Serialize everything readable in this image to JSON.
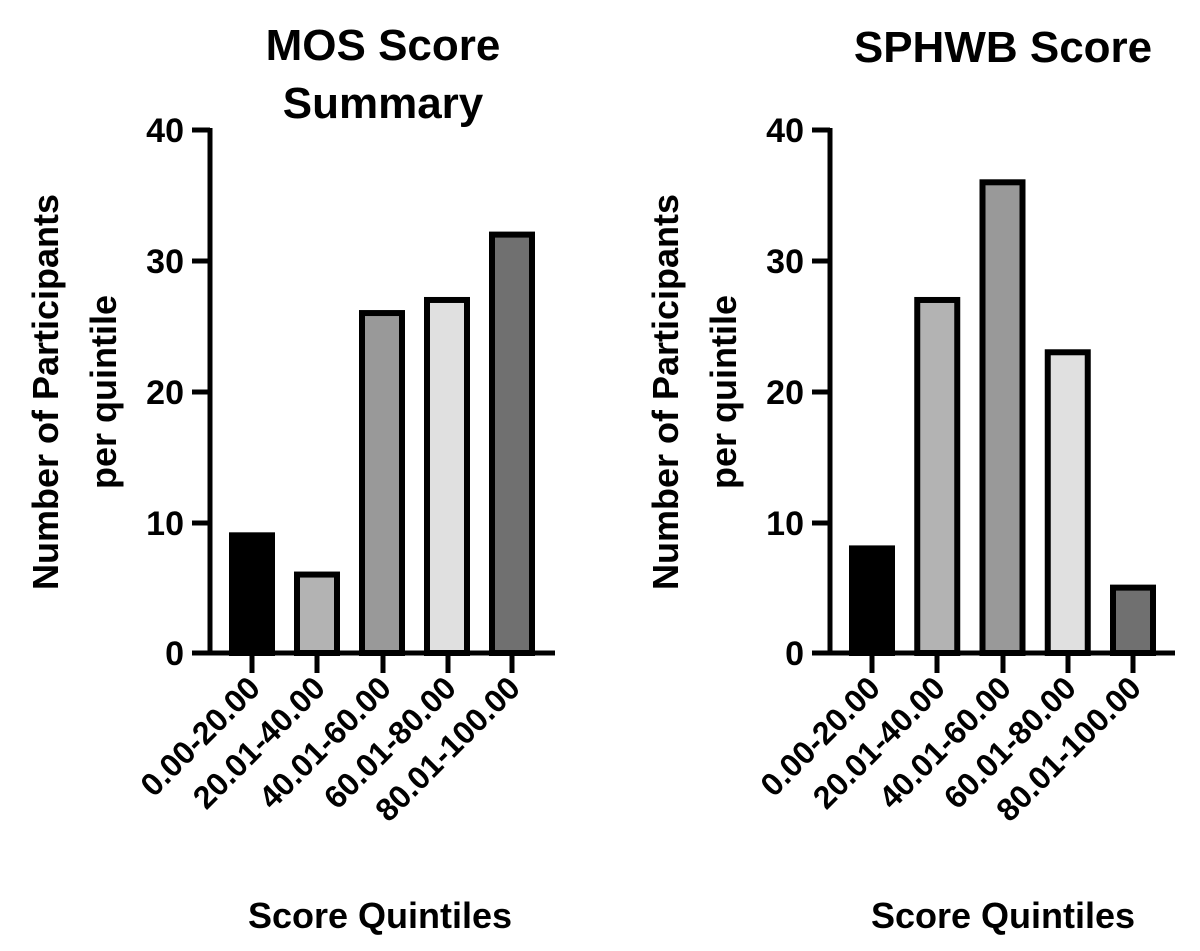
{
  "chart_data": [
    {
      "type": "bar",
      "title_lines": [
        "MOS Score",
        "Summary"
      ],
      "xlabel": "Score Quintiles",
      "ylabel_lines": [
        "Number of Participants",
        "per quintile"
      ],
      "categories": [
        "0.00-20.00",
        "20.01-40.00",
        "40.01-60.00",
        "60.01-80.00",
        "80.01-100.00"
      ],
      "values": [
        9,
        6,
        26,
        27,
        32
      ],
      "bar_colors": [
        "#000000",
        "#b3b3b3",
        "#999999",
        "#e0e0e0",
        "#707070"
      ],
      "yticks": [
        "0",
        "10",
        "20",
        "30",
        "40"
      ],
      "ylim": [
        0,
        40
      ],
      "grid": false,
      "legend": "none"
    },
    {
      "type": "bar",
      "title_lines": [
        "SPHWB Score"
      ],
      "xlabel": "Score Quintiles",
      "ylabel_lines": [
        "Number of Participants",
        "per quintile"
      ],
      "categories": [
        "0.00-20.00",
        "20.01-40.00",
        "40.01-60.00",
        "60.01-80.00",
        "80.01-100.00"
      ],
      "values": [
        8,
        27,
        36,
        23,
        5
      ],
      "bar_colors": [
        "#000000",
        "#b3b3b3",
        "#999999",
        "#e0e0e0",
        "#707070"
      ],
      "yticks": [
        "0",
        "10",
        "20",
        "30",
        "40"
      ],
      "ylim": [
        0,
        40
      ],
      "grid": false,
      "legend": "none"
    }
  ]
}
